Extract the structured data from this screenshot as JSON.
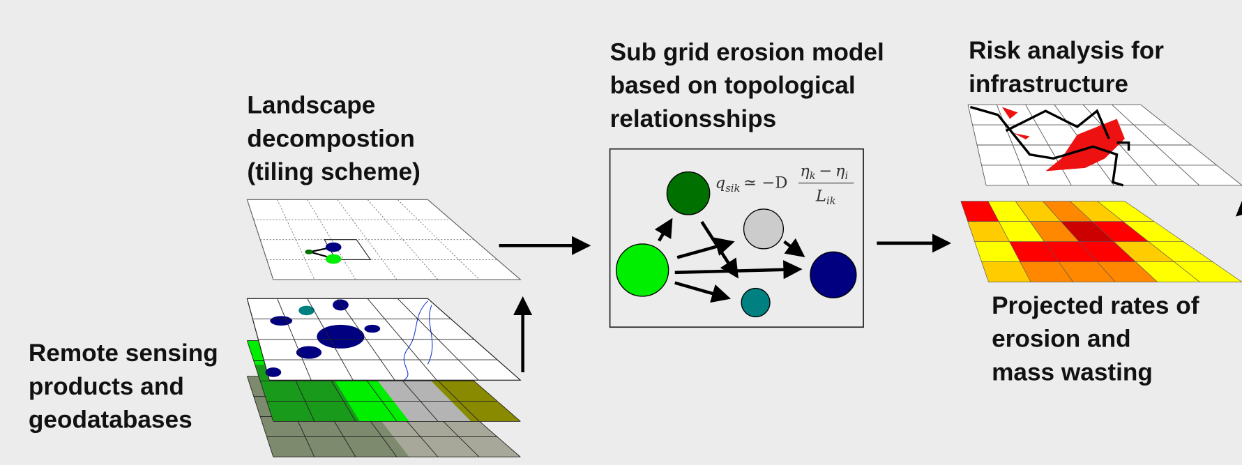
{
  "labels": {
    "landscape": [
      "Landscape",
      "decompostion",
      "(tiling scheme)"
    ],
    "subgrid": [
      "Sub grid erosion model",
      "based on topological",
      "relationsships"
    ],
    "risk": [
      "Risk analysis for",
      "infrastructure"
    ],
    "remote": [
      "Remote sensing",
      "products and",
      "geodatabases"
    ],
    "projected": [
      "Projected rates of",
      "erosion and",
      "mass wasting"
    ]
  },
  "formula": {
    "lhs": "q",
    "lhs_sub": "sik",
    "rel": "≃ −D",
    "num_a": "η",
    "num_a_sub": "k",
    "minus": "−",
    "num_b": "η",
    "num_b_sub": "i",
    "den": "L",
    "den_sub": "ik"
  }
}
